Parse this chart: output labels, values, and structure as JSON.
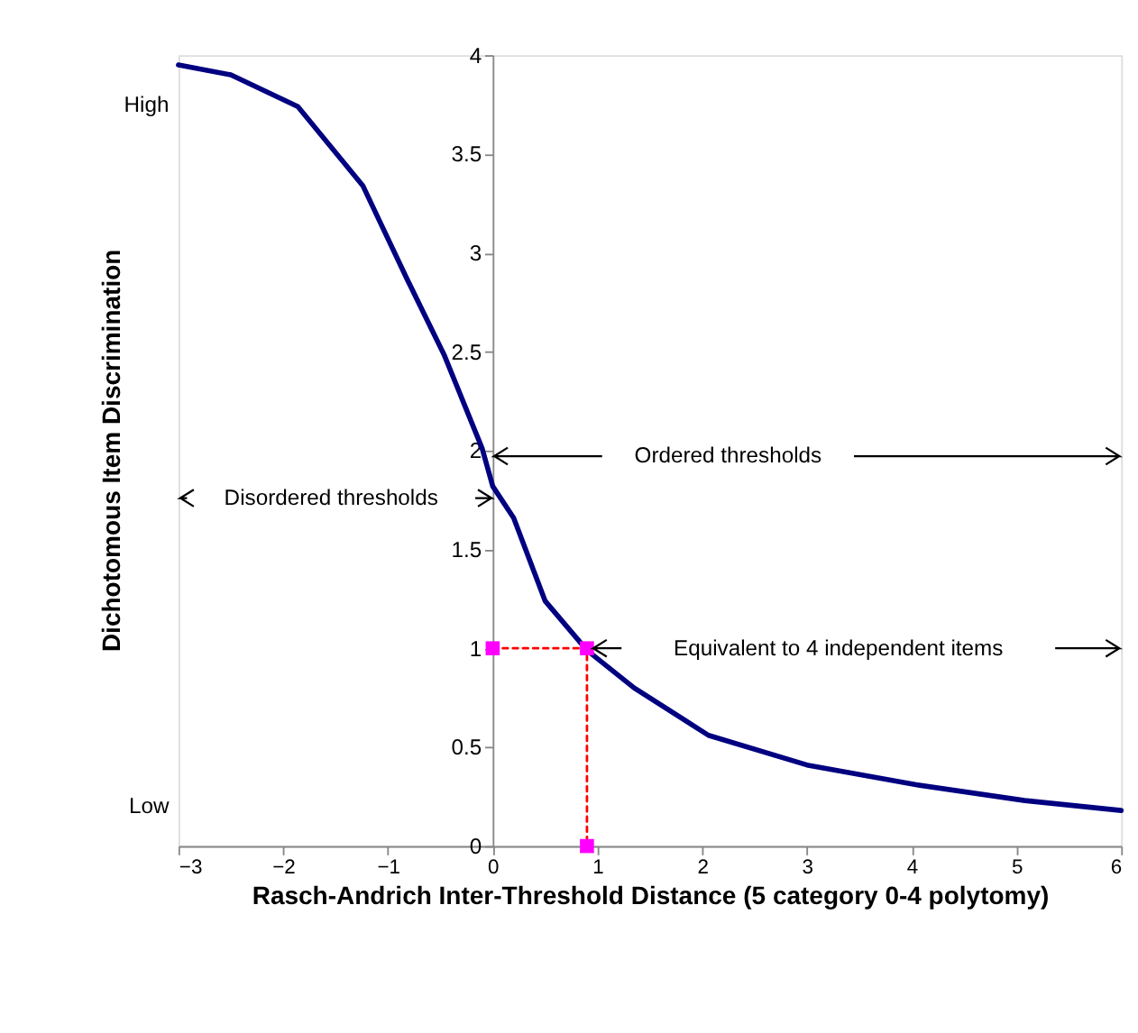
{
  "chart_data": {
    "type": "line",
    "xlabel": "Rasch-Andrich Inter-Threshold Distance (5 category 0-4 polytomy)",
    "ylabel": "Dichotomous Item Discrimination",
    "xlim": [
      -3,
      6
    ],
    "ylim": [
      0,
      4
    ],
    "xticks": [
      -3,
      -2,
      -1,
      0,
      1,
      2,
      3,
      4,
      5,
      6
    ],
    "yticks": [
      0,
      0.5,
      1,
      1.5,
      2,
      2.5,
      3,
      3.5,
      4
    ],
    "grid": false,
    "legend": false,
    "series": [
      {
        "color": "#000080",
        "marker": "none",
        "line_style": "solid",
        "x": [
          -3,
          -2.5,
          -1.86,
          -1.24,
          -0.82,
          -0.46,
          -0.1,
          0,
          0.2,
          0.5,
          0.9,
          1.35,
          2.06,
          3,
          4.04,
          5.08,
          6
        ],
        "values": [
          3.95,
          3.9,
          3.74,
          3.34,
          2.87,
          2.48,
          2.01,
          1.82,
          1.66,
          1.24,
          0.99,
          0.8,
          0.56,
          0.41,
          0.31,
          0.23,
          0.18
        ]
      },
      {
        "type": "line",
        "color": "#ff0000",
        "marker": "none",
        "line_style": "dotted",
        "x": [
          0,
          0.9,
          0.9
        ],
        "values": [
          1,
          1,
          0
        ]
      },
      {
        "type": "scatter",
        "color": "#ff00ff",
        "marker": "square",
        "x": [
          0,
          0.9,
          0.9
        ],
        "values": [
          1,
          1,
          0
        ]
      }
    ],
    "annotations": [
      "High",
      "Low",
      "Ordered thresholds",
      "Disordered thresholds",
      "Equivalent to 4 independent items"
    ]
  }
}
